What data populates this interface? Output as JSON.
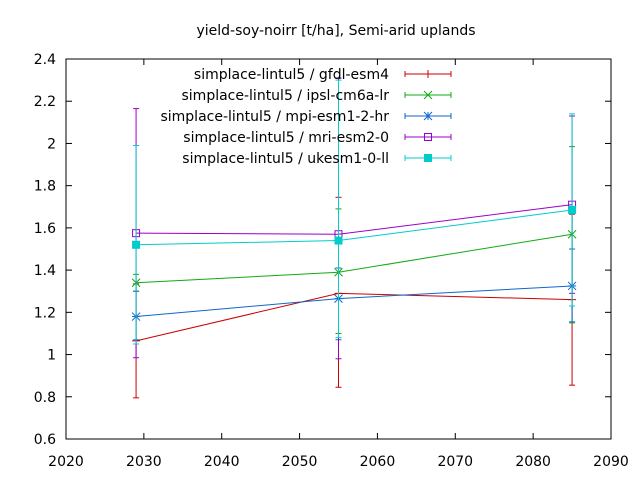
{
  "chart_data": {
    "type": "line",
    "title": "yield-soy-noirr [t/ha], Semi-arid uplands",
    "xlabel": "",
    "ylabel": "",
    "xlim": [
      2020,
      2090
    ],
    "ylim": [
      0.6,
      2.4
    ],
    "xticks": [
      2020,
      2030,
      2040,
      2050,
      2060,
      2070,
      2080,
      2090
    ],
    "yticks": [
      0.6,
      0.8,
      1,
      1.2,
      1.4,
      1.6,
      1.8,
      2,
      2.2,
      2.4
    ],
    "grid": false,
    "legend_position": "top-right",
    "series": [
      {
        "name": "simplace-lintul5 / gfdl-esm4",
        "color": "#cc0000",
        "marker": "plus",
        "x": [
          2029,
          2055,
          2085
        ],
        "y": [
          1.065,
          1.29,
          1.26
        ],
        "yerr_low": [
          0.795,
          0.845,
          0.855
        ],
        "yerr_high": [
          1.335,
          1.745,
          1.665
        ]
      },
      {
        "name": "simplace-lintul5 / ipsl-cm6a-lr",
        "color": "#11aa11",
        "marker": "cross",
        "x": [
          2029,
          2055,
          2085
        ],
        "y": [
          1.34,
          1.39,
          1.57
        ],
        "yerr_low": [
          1.3,
          1.1,
          1.15
        ],
        "yerr_high": [
          1.38,
          1.69,
          1.985
        ]
      },
      {
        "name": "simplace-lintul5 / mpi-esm1-2-hr",
        "color": "#1166cc",
        "marker": "star",
        "x": [
          2029,
          2055,
          2085
        ],
        "y": [
          1.18,
          1.265,
          1.325
        ],
        "yerr_low": [
          1.07,
          1.07,
          1.155
        ],
        "yerr_high": [
          1.3,
          1.41,
          1.5
        ]
      },
      {
        "name": "simplace-lintul5 / mri-esm2-0",
        "color": "#9900cc",
        "marker": "square-open",
        "x": [
          2029,
          2055,
          2085
        ],
        "y": [
          1.575,
          1.57,
          1.71
        ],
        "yerr_low": [
          0.985,
          0.98,
          1.29
        ],
        "yerr_high": [
          2.165,
          2.31,
          2.13
        ]
      },
      {
        "name": "simplace-lintul5 / ukesm1-0-ll",
        "color": "#00cccc",
        "marker": "square-filled",
        "x": [
          2029,
          2055,
          2085
        ],
        "y": [
          1.52,
          1.54,
          1.685
        ],
        "yerr_low": [
          1.05,
          1.08,
          1.23
        ],
        "yerr_high": [
          1.99,
          2.3,
          2.14
        ]
      }
    ]
  }
}
